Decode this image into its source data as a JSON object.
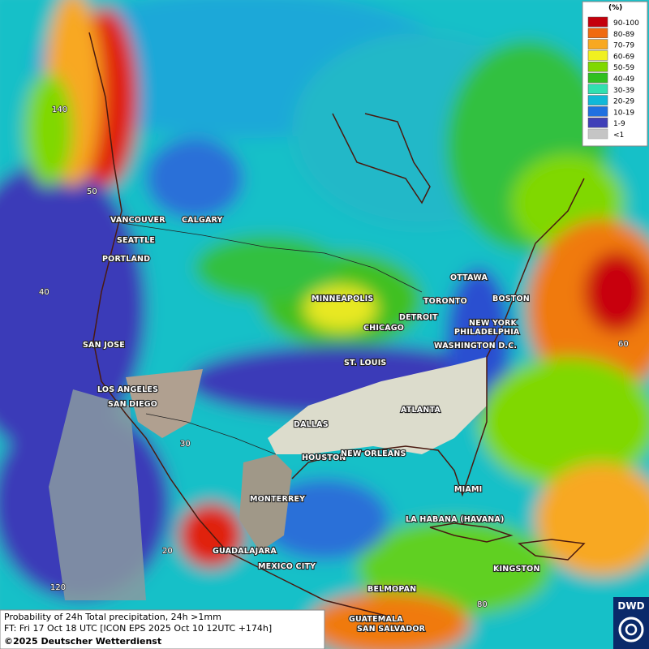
{
  "legend": {
    "title": "(%)",
    "items": [
      {
        "label": "90-100",
        "color": "#c4000c"
      },
      {
        "label": "80-89",
        "color": "#f06a10"
      },
      {
        "label": "70-79",
        "color": "#f8a820"
      },
      {
        "label": "60-69",
        "color": "#f0f020"
      },
      {
        "label": "50-59",
        "color": "#80d800"
      },
      {
        "label": "40-49",
        "color": "#30c020"
      },
      {
        "label": "30-39",
        "color": "#30e0b0"
      },
      {
        "label": "20-29",
        "color": "#10b8d8"
      },
      {
        "label": "10-19",
        "color": "#2070e0"
      },
      {
        "label": "1-9",
        "color": "#4040b8"
      },
      {
        "label": "<1",
        "color": "#a0a0a0"
      }
    ]
  },
  "cities": [
    "VANCOUVER",
    "CALGARY",
    "SEATTLE",
    "PORTLAND",
    "MINNEAPOLIS",
    "TORONTO",
    "OTTAWA",
    "BOSTON",
    "DETROIT",
    "NEW YORK",
    "CHICAGO",
    "PHILADELPHIA",
    "WASHINGTON D.C.",
    "SAN JOSE",
    "ST. LOUIS",
    "LOS ANGELES",
    "SAN DIEGO",
    "ATLANTA",
    "DALLAS",
    "HOUSTON",
    "NEW ORLEANS",
    "MIAMI",
    "MONTERREY",
    "LA HABANA (HAVANA)",
    "GUADALAJARA",
    "MEXICO CITY",
    "KINGSTON",
    "BELMOPAN",
    "GUATEMALA",
    "SAN SALVADOR"
  ],
  "grid_labels": [
    "140",
    "50",
    "40",
    "60",
    "30",
    "20",
    "120",
    "80"
  ],
  "footer": {
    "product": "Probability of 24h Total precipitation, 24h >1mm",
    "forecast": "FT: Fri 17 Oct 18 UTC [ICON EPS 2025 Oct 10 12UTC +174h]",
    "copyright": "©2025 Deutscher Wetterdienst"
  },
  "logo": "DWD"
}
